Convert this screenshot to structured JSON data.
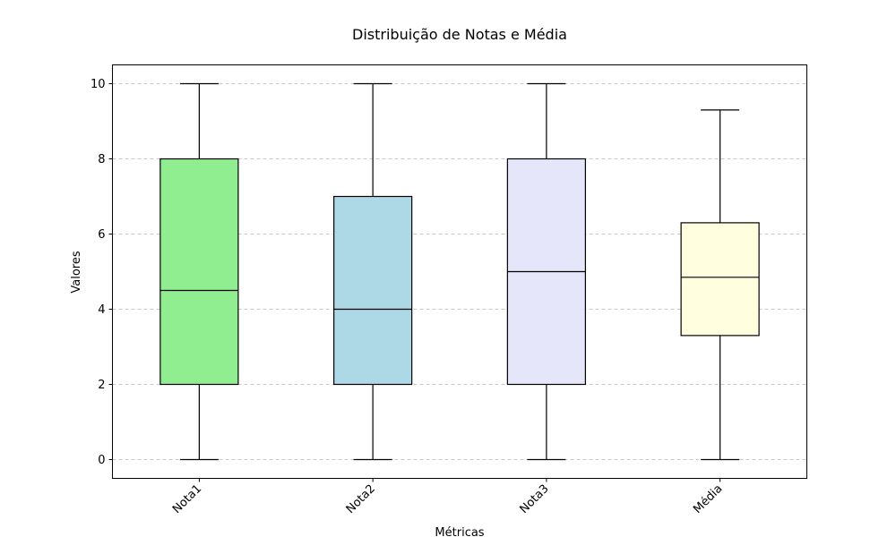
{
  "chart_data": {
    "type": "box",
    "title": "Distribuição de Notas e Média",
    "xlabel": "Métricas",
    "ylabel": "Valores",
    "ylim": [
      -0.5,
      10.5
    ],
    "yticks": [
      "0",
      "2",
      "4",
      "6",
      "8",
      "10"
    ],
    "grid": "y-dashed",
    "categories": [
      "Nota1",
      "Nota2",
      "Nota3",
      "Média"
    ],
    "boxes": [
      {
        "category": "Nota1",
        "min": 0,
        "q1": 2,
        "median": 4.5,
        "q3": 8,
        "max": 10,
        "color": "#90EE90"
      },
      {
        "category": "Nota2",
        "min": 0,
        "q1": 2,
        "median": 4,
        "q3": 7,
        "max": 10,
        "color": "#ADD8E6"
      },
      {
        "category": "Nota3",
        "min": 0,
        "q1": 2,
        "median": 5,
        "q3": 8,
        "max": 10,
        "color": "#E6E6FA"
      },
      {
        "category": "Média",
        "min": 0,
        "q1": 3.3,
        "median": 4.85,
        "q3": 6.3,
        "max": 9.3,
        "color": "#FFFFE0"
      }
    ]
  }
}
